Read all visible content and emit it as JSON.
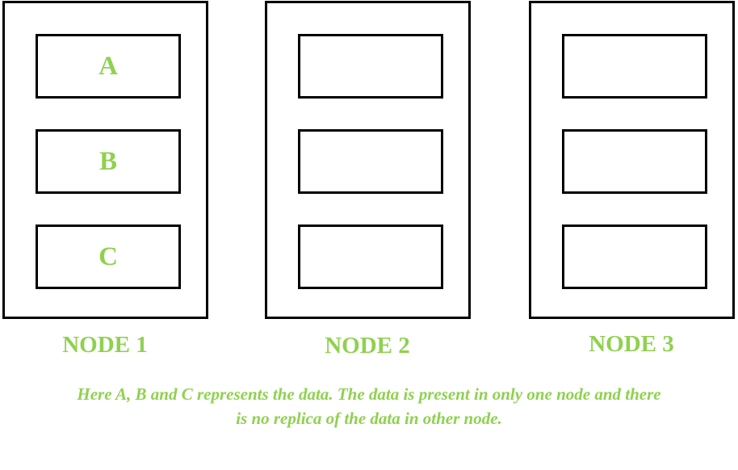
{
  "nodes": [
    {
      "label": "NODE 1",
      "slots": [
        "A",
        "B",
        "C"
      ]
    },
    {
      "label": "NODE 2",
      "slots": [
        "",
        "",
        ""
      ]
    },
    {
      "label": "NODE 3",
      "slots": [
        "",
        "",
        ""
      ]
    }
  ],
  "caption": {
    "line1": "Here A, B and C represents the data. The data is present in only one node and there",
    "line2": "is no replica of the data in other node."
  },
  "colors": {
    "accent": "#8fd14f",
    "outline": "#000000"
  }
}
